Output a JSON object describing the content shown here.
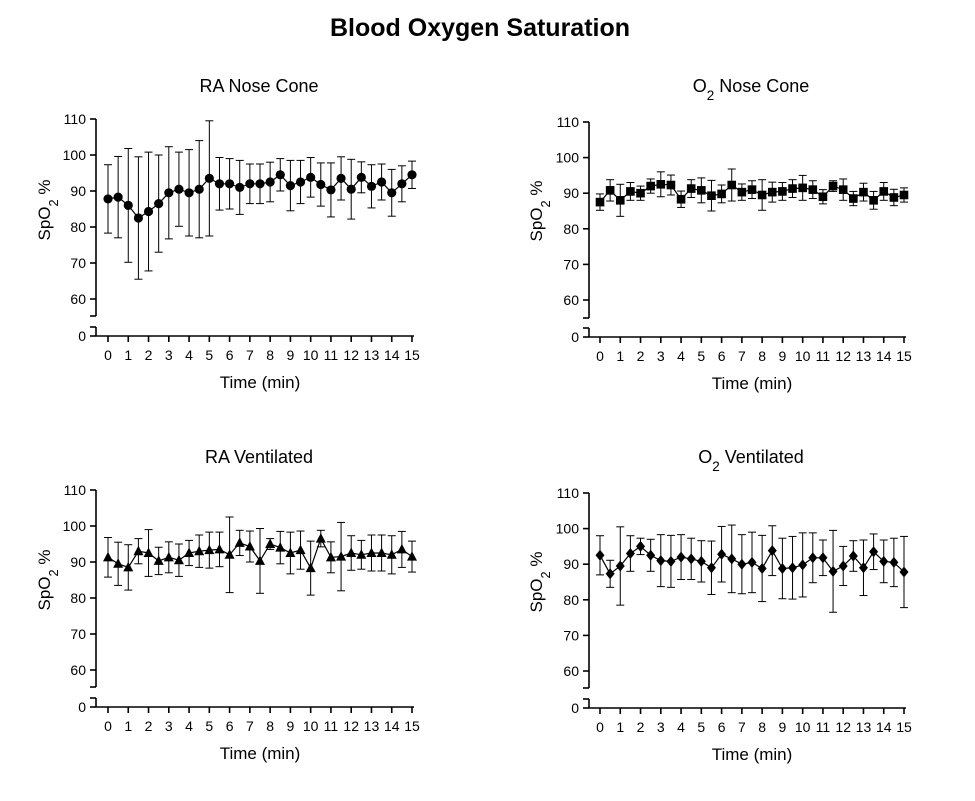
{
  "figure_title": "Blood Oxygen Saturation",
  "chart_data": [
    {
      "type": "line",
      "title": "RA Nose Cone",
      "title_subscript": "",
      "marker": "circle",
      "xlabel": "Time (min)",
      "ylabel": "SpO",
      "ylabel_subscript": "2",
      "ylabel_suffix": " %",
      "ylim": [
        0,
        110
      ],
      "axis_break": [
        0,
        60
      ],
      "yticks": [
        0,
        60,
        70,
        80,
        90,
        100,
        110
      ],
      "xticks": [
        0,
        1,
        2,
        3,
        4,
        5,
        6,
        7,
        8,
        9,
        10,
        11,
        12,
        13,
        14,
        15
      ],
      "x": [
        0,
        0.5,
        1,
        1.5,
        2,
        2.5,
        3,
        3.5,
        4,
        4.5,
        5,
        5.5,
        6,
        6.5,
        7,
        7.5,
        8,
        8.5,
        9,
        9.5,
        10,
        10.5,
        11,
        11.5,
        12,
        12.5,
        13,
        13.5,
        14,
        14.5,
        15
      ],
      "values": [
        87.8,
        88.3,
        86,
        82.5,
        84.3,
        86.5,
        89.5,
        90.5,
        89.5,
        90.5,
        93.5,
        92,
        92,
        91,
        92,
        92,
        92.5,
        94.5,
        91.5,
        92.5,
        93.8,
        91.8,
        90.3,
        93.5,
        90.5,
        93.8,
        91.3,
        92.5,
        89.5,
        92,
        94.5
      ],
      "error": [
        9.5,
        11.3,
        15.8,
        17,
        16.5,
        13.5,
        12.8,
        10.3,
        12,
        13.5,
        16,
        7.3,
        7,
        7.5,
        5.5,
        5.5,
        5.5,
        4.5,
        7,
        6,
        5.5,
        6,
        7.5,
        6,
        8.3,
        4.3,
        6,
        5,
        6.5,
        5,
        3.8
      ]
    },
    {
      "type": "line",
      "title": "O",
      "title_subscript": "2",
      "title_suffix": " Nose Cone",
      "marker": "square",
      "xlabel": "Time (min)",
      "ylabel": "SpO",
      "ylabel_subscript": "2",
      "ylabel_suffix": " %",
      "ylim": [
        0,
        110
      ],
      "axis_break": [
        0,
        60
      ],
      "yticks": [
        0,
        60,
        70,
        80,
        90,
        100,
        110
      ],
      "xticks": [
        0,
        1,
        2,
        3,
        4,
        5,
        6,
        7,
        8,
        9,
        10,
        11,
        12,
        13,
        14,
        15
      ],
      "x": [
        0,
        0.5,
        1,
        1.5,
        2,
        2.5,
        3,
        3.5,
        4,
        4.5,
        5,
        5.5,
        6,
        6.5,
        7,
        7.5,
        8,
        8.5,
        9,
        9.5,
        10,
        10.5,
        11,
        11.5,
        12,
        12.5,
        13,
        13.5,
        14,
        14.5,
        15
      ],
      "values": [
        87.5,
        90.8,
        88,
        90.5,
        90,
        92,
        92.5,
        92.3,
        88.3,
        91.3,
        90.8,
        89.3,
        89.8,
        92.3,
        90.3,
        91,
        89.5,
        90.3,
        90.5,
        91.3,
        91.5,
        91,
        89,
        92,
        91,
        88.5,
        90.3,
        88,
        90.5,
        88.8,
        89.5
      ],
      "error": [
        2.3,
        3,
        4.5,
        2.5,
        2,
        2,
        3.5,
        2.8,
        2.3,
        2.5,
        3.5,
        4.3,
        2.5,
        4.5,
        2.3,
        2.5,
        4.3,
        2.8,
        2.5,
        2.5,
        3.5,
        2.5,
        2,
        1.5,
        3,
        2,
        2.5,
        2.5,
        2.5,
        2.3,
        2
      ]
    },
    {
      "type": "line",
      "title": "RA Ventilated",
      "title_subscript": "",
      "marker": "triangle",
      "xlabel": "Time (min)",
      "ylabel": "SpO",
      "ylabel_subscript": "2",
      "ylabel_suffix": " %",
      "ylim": [
        0,
        110
      ],
      "axis_break": [
        0,
        60
      ],
      "yticks": [
        0,
        60,
        70,
        80,
        90,
        100,
        110
      ],
      "xticks": [
        0,
        1,
        2,
        3,
        4,
        5,
        6,
        7,
        8,
        9,
        10,
        11,
        12,
        13,
        14,
        15
      ],
      "x": [
        0,
        0.5,
        1,
        1.5,
        2,
        2.5,
        3,
        3.5,
        4,
        4.5,
        5,
        5.5,
        6,
        6.5,
        7,
        7.5,
        8,
        8.5,
        9,
        9.5,
        10,
        10.5,
        11,
        11.5,
        12,
        12.5,
        13,
        13.5,
        14,
        14.5,
        15
      ],
      "values": [
        91.3,
        89.5,
        88.5,
        93,
        92.5,
        90.3,
        91.3,
        90.5,
        92.5,
        93,
        93.3,
        93.5,
        92,
        95.3,
        94.3,
        90.3,
        95,
        94,
        92.5,
        93.3,
        88.3,
        96.5,
        91.3,
        91.5,
        92.5,
        92,
        92.5,
        92.5,
        92,
        93.5,
        91.5
      ],
      "error": [
        5.5,
        6,
        6.3,
        3.5,
        6.5,
        3.8,
        4.3,
        4.5,
        3.5,
        4.5,
        5,
        4.8,
        10.5,
        3.5,
        4.3,
        9,
        1.5,
        4.5,
        5.8,
        5.3,
        7.5,
        2.3,
        4.3,
        9.5,
        4.8,
        4,
        5,
        5,
        5.3,
        5,
        4.3
      ]
    },
    {
      "type": "line",
      "title": "O",
      "title_subscript": "2",
      "title_suffix": " Ventilated",
      "marker": "diamond",
      "xlabel": "Time (min)",
      "ylabel": "SpO",
      "ylabel_subscript": "2",
      "ylabel_suffix": " %",
      "ylim": [
        0,
        110
      ],
      "axis_break": [
        0,
        60
      ],
      "yticks": [
        0,
        60,
        70,
        80,
        90,
        100,
        110
      ],
      "xticks": [
        0,
        1,
        2,
        3,
        4,
        5,
        6,
        7,
        8,
        9,
        10,
        11,
        12,
        13,
        14,
        15
      ],
      "x": [
        0,
        0.5,
        1,
        1.5,
        2,
        2.5,
        3,
        3.5,
        4,
        4.5,
        5,
        5.5,
        6,
        6.5,
        7,
        7.5,
        8,
        8.5,
        9,
        9.5,
        10,
        10.5,
        11,
        11.5,
        12,
        12.5,
        13,
        13.5,
        14,
        14.5,
        15
      ],
      "values": [
        92.5,
        87.3,
        89.5,
        93,
        95,
        92.5,
        91,
        90.8,
        92,
        91.5,
        90.8,
        89,
        92.8,
        91.5,
        90,
        90.5,
        88.8,
        93.8,
        88.8,
        89,
        89.8,
        91.8,
        91.8,
        88,
        89.5,
        92.3,
        89,
        93.5,
        90.8,
        90.5,
        87.8
      ],
      "error": [
        5.5,
        3.8,
        11,
        5,
        2.3,
        4.5,
        7.3,
        7.3,
        6.3,
        5.8,
        5.8,
        7.5,
        7.8,
        9.5,
        8.3,
        8.5,
        9.3,
        7,
        8.5,
        8.8,
        9,
        7,
        5,
        11.5,
        5.5,
        4.3,
        7.8,
        5,
        6,
        6.8,
        10
      ]
    }
  ]
}
